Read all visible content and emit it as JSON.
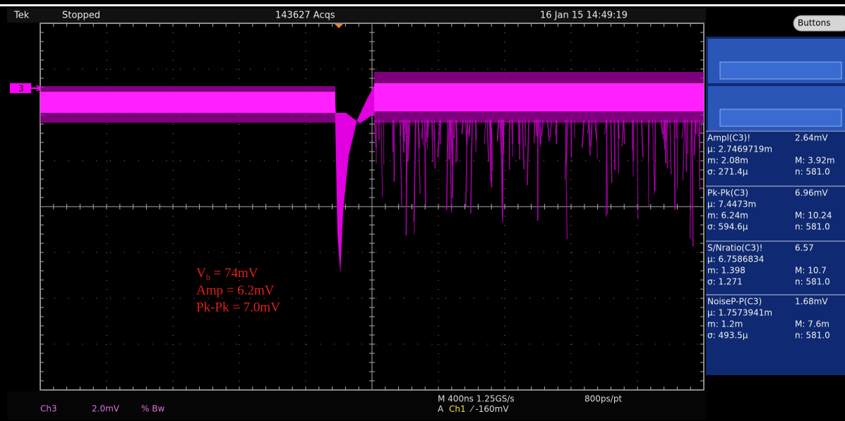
{
  "header": {
    "brand": "Tek",
    "status": "Stopped",
    "acquisitions": "143627 Acqs",
    "timestamp": "16 Jan 15 14:49:19"
  },
  "side_panel": {
    "button": "Buttons",
    "measurements": [
      {
        "name": "Ampl(C3)!",
        "value": "2.64mV",
        "mean": "μ: 2.7469719m",
        "min": "m: 2.08m",
        "max": "M: 3.92m",
        "std": "σ: 271.4μ",
        "count": "n: 581.0"
      },
      {
        "name": "Pk-Pk(C3)",
        "value": "6.96mV",
        "mean": "μ: 7.4473m",
        "min": "m: 6.24m",
        "max": "M: 10.24",
        "std": "σ: 594.6μ",
        "count": "n: 581.0"
      },
      {
        "name": "S/Nratio(C3)!",
        "value": "6.57",
        "mean": "μ: 6.7586834",
        "min": "m: 1.398",
        "max": "M: 10.7",
        "std": "σ: 1.271",
        "count": "n: 581.0"
      },
      {
        "name": "NoiseP-P(C3)",
        "value": "1.68mV",
        "mean": "μ: 1.7573941m",
        "min": "m: 1.2m",
        "max": "M: 7.6m",
        "std": "σ: 493.5μ",
        "count": "n: 581.0"
      }
    ]
  },
  "channel_marker": "3",
  "annotations": [
    {
      "symbol": "V",
      "subscript": "b",
      "text": " = 74mV"
    },
    {
      "text": "Amp = 6.2mV"
    },
    {
      "text": "Pk-Pk = 7.0mV"
    }
  ],
  "footer": {
    "channel": "Ch3",
    "scale": "2.0mV",
    "bandwidth": "% Bw",
    "timebase": "M 400ns 1.25GS/s",
    "resolution": "800ps/pt",
    "trigger_prefix": "A",
    "trigger_channel": "Ch1",
    "trigger_level": "⁄ -160mV"
  }
}
